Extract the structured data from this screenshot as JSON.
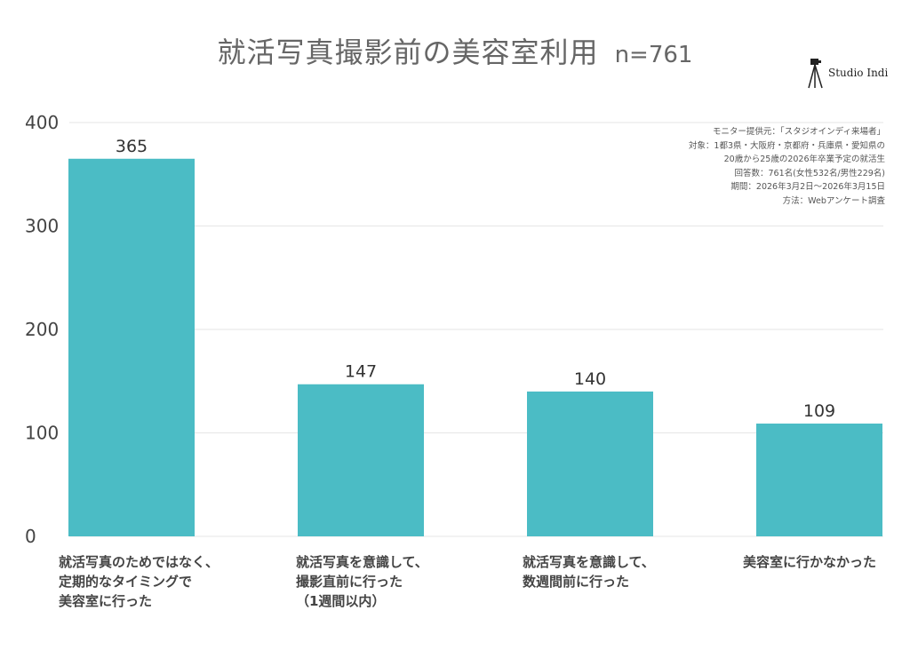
{
  "title": "就活写真撮影前の美容室利用",
  "n_label": "n=761",
  "logo": {
    "text": "Studio Indi",
    "icon": "camera-tripod-icon"
  },
  "notes": [
    "モニター提供元：「スタジオインディ来場者」",
    "対象：1都3県・大阪府・京都府・兵庫県・愛知県の",
    "20歳から25歳の2026年卒業予定の就活生",
    "回答数：761名(女性532名/男性229名)",
    "期間：2026年3月2日〜2026年3月15日",
    "方法：Webアンケート調査"
  ],
  "colors": {
    "bar": "#4bbcc5",
    "grid": "#e6e6e6",
    "axis_text": "#444444",
    "title": "#666666"
  },
  "chart_data": {
    "type": "bar",
    "categories": [
      "就活写真のためではなく、定期的なタイミングで美容室に行った",
      "就活写真を意識して、撮影直前に行った（1週間以内）",
      "就活写真を意識して、数週間前に行った",
      "美容室に行かなかった"
    ],
    "category_lines": [
      [
        "就活写真のためではなく、",
        "定期的なタイミングで",
        "美容室に行った"
      ],
      [
        "就活写真を意識して、",
        "撮影直前に行った",
        "（1週間以内）"
      ],
      [
        "就活写真を意識して、",
        "数週間前に行った"
      ],
      [
        "美容室に行かなかった"
      ]
    ],
    "values": [
      365,
      147,
      140,
      109
    ],
    "data_labels": [
      "365",
      "147",
      "140",
      "109"
    ],
    "ylim": [
      0,
      400
    ],
    "yticks": [
      0,
      100,
      200,
      300,
      400
    ],
    "grid": true,
    "xlabel": "",
    "ylabel": ""
  }
}
